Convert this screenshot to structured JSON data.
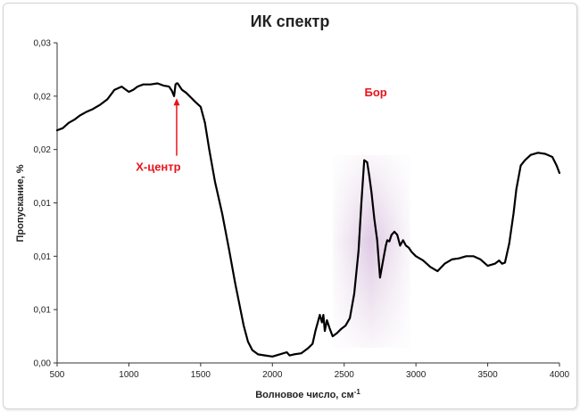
{
  "chart_data": {
    "type": "line",
    "title": "ИК спектр",
    "xlabel": "Волновое число, см",
    "xlabel_sup": "-1",
    "ylabel": "Пропускание, %",
    "xlim": [
      500,
      4000
    ],
    "ylim": [
      0,
      0.03
    ],
    "x_ticks": [
      "500",
      "1000",
      "1500",
      "2000",
      "2500",
      "3000",
      "3500",
      "4000"
    ],
    "y_ticks": [
      "0,00",
      "0,01",
      "0,01",
      "0,01",
      "0,02",
      "0,02",
      "0,03"
    ],
    "grid": false,
    "series": [
      {
        "color": "#000000",
        "x": [
          500,
          540,
          580,
          620,
          660,
          700,
          750,
          800,
          850,
          900,
          950,
          980,
          1000,
          1030,
          1060,
          1100,
          1150,
          1200,
          1240,
          1280,
          1300,
          1315,
          1325,
          1333,
          1340,
          1350,
          1370,
          1400,
          1430,
          1460,
          1500,
          1530,
          1560,
          1600,
          1650,
          1700,
          1740,
          1770,
          1800,
          1830,
          1860,
          1900,
          1950,
          2000,
          2050,
          2100,
          2120,
          2150,
          2200,
          2250,
          2280,
          2300,
          2320,
          2330,
          2345,
          2355,
          2365,
          2380,
          2400,
          2420,
          2450,
          2480,
          2510,
          2540,
          2570,
          2600,
          2620,
          2640,
          2660,
          2675,
          2690,
          2710,
          2730,
          2750,
          2770,
          2790,
          2800,
          2815,
          2830,
          2850,
          2870,
          2890,
          2910,
          2930,
          2950,
          2970,
          3000,
          3050,
          3100,
          3150,
          3200,
          3250,
          3300,
          3350,
          3400,
          3450,
          3500,
          3550,
          3580,
          3600,
          3620,
          3650,
          3680,
          3700,
          3730,
          3760,
          3800,
          3850,
          3900,
          3950,
          3980,
          4000
        ],
        "y": [
          0.0218,
          0.022,
          0.0225,
          0.0228,
          0.0232,
          0.0235,
          0.0238,
          0.0242,
          0.0247,
          0.0256,
          0.0259,
          0.0256,
          0.0254,
          0.0256,
          0.0259,
          0.0261,
          0.0261,
          0.0262,
          0.026,
          0.0259,
          0.0255,
          0.025,
          0.0261,
          0.0262,
          0.0262,
          0.026,
          0.0256,
          0.0253,
          0.0249,
          0.0245,
          0.024,
          0.0225,
          0.02,
          0.017,
          0.014,
          0.0105,
          0.0075,
          0.0055,
          0.0035,
          0.002,
          0.0012,
          0.0008,
          0.0007,
          0.0006,
          0.0008,
          0.001,
          0.0007,
          0.0008,
          0.0009,
          0.0014,
          0.0018,
          0.003,
          0.004,
          0.0045,
          0.0038,
          0.0045,
          0.003,
          0.004,
          0.0032,
          0.0025,
          0.0028,
          0.0032,
          0.0035,
          0.0042,
          0.0065,
          0.0105,
          0.015,
          0.019,
          0.0188,
          0.0175,
          0.016,
          0.0135,
          0.0115,
          0.008,
          0.0095,
          0.011,
          0.0115,
          0.0114,
          0.012,
          0.0123,
          0.012,
          0.011,
          0.0115,
          0.011,
          0.0108,
          0.0104,
          0.01,
          0.0096,
          0.009,
          0.0086,
          0.0093,
          0.0097,
          0.0098,
          0.01,
          0.01,
          0.0097,
          0.0091,
          0.0093,
          0.0096,
          0.0093,
          0.0094,
          0.0112,
          0.014,
          0.0163,
          0.0185,
          0.019,
          0.0195,
          0.0197,
          0.0196,
          0.0193,
          0.0185,
          0.0178
        ]
      }
    ],
    "highlight": {
      "x": [
        2420,
        2960
      ],
      "color": "#9b5aa8"
    },
    "annotations": [
      {
        "text": "Бор",
        "x": 2720,
        "y": 0.025,
        "color": "#e8141b"
      },
      {
        "text": "Х-центр",
        "x": 1205,
        "y": 0.018,
        "color": "#e8141b",
        "arrow_to": [
          1333,
          0.0248
        ]
      }
    ]
  }
}
